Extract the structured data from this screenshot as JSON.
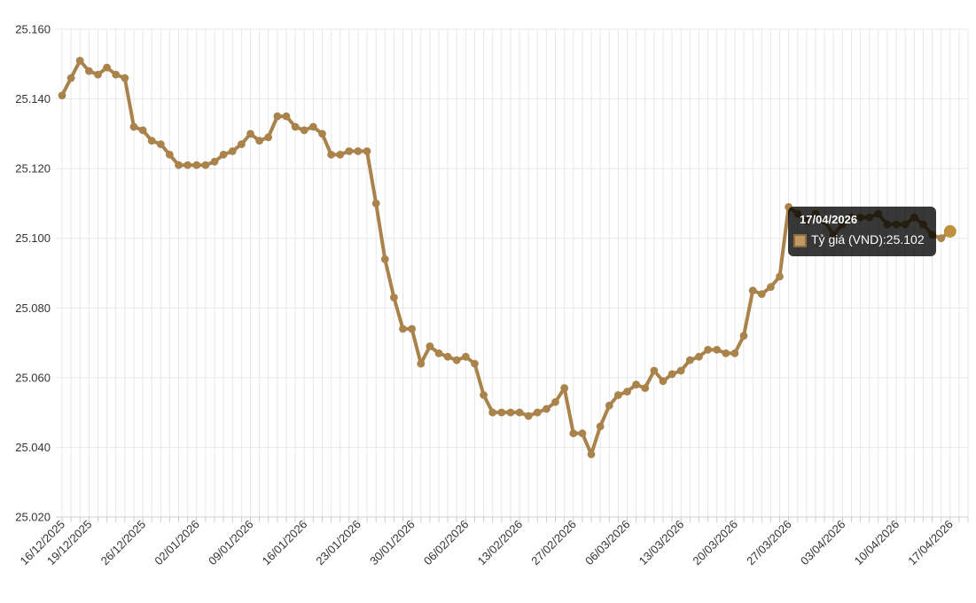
{
  "chart_data": {
    "type": "line",
    "title": "",
    "legend_position": "none",
    "grid": true,
    "series": [
      {
        "name": "Tỷ giá (VND)",
        "color": "#a9834b",
        "values": [
          25141,
          25146,
          25151,
          25148,
          25147,
          25149,
          25147,
          25146,
          25132,
          25131,
          25128,
          25127,
          25124,
          25121,
          25121,
          25121,
          25121,
          25122,
          25124,
          25125,
          25127,
          25130,
          25128,
          25129,
          25135,
          25135,
          25132,
          25131,
          25132,
          25130,
          25124,
          25124,
          25125,
          25125,
          25125,
          25110,
          25094,
          25083,
          25074,
          25074,
          25064,
          25069,
          25067,
          25066,
          25065,
          25066,
          25064,
          25055,
          25050,
          25050,
          25050,
          25050,
          25049,
          25050,
          25051,
          25053,
          25057,
          25044,
          25044,
          25038,
          25046,
          25052,
          25055,
          25056,
          25058,
          25057,
          25062,
          25059,
          25061,
          25062,
          25065,
          25066,
          25068,
          25068,
          25067,
          25067,
          25072,
          25085,
          25084,
          25086,
          25089,
          25109,
          25107,
          25105,
          25107,
          25105,
          25101,
          25104,
          25106,
          25106,
          25106,
          25107,
          25104,
          25104,
          25104,
          25106,
          25104,
          25101,
          25100,
          25102
        ]
      }
    ],
    "x_axis": {
      "tick_labels": [
        {
          "index": 0,
          "label": "16/12/2025"
        },
        {
          "index": 3,
          "label": "19/12/2025"
        },
        {
          "index": 9,
          "label": "26/12/2025"
        },
        {
          "index": 15,
          "label": "02/01/2026"
        },
        {
          "index": 21,
          "label": "09/01/2026"
        },
        {
          "index": 27,
          "label": "16/01/2026"
        },
        {
          "index": 33,
          "label": "23/01/2026"
        },
        {
          "index": 39,
          "label": "30/01/2026"
        },
        {
          "index": 45,
          "label": "06/02/2026"
        },
        {
          "index": 51,
          "label": "13/02/2026"
        },
        {
          "index": 57,
          "label": "27/02/2026"
        },
        {
          "index": 63,
          "label": "06/03/2026"
        },
        {
          "index": 69,
          "label": "13/03/2026"
        },
        {
          "index": 75,
          "label": "20/03/2026"
        },
        {
          "index": 81,
          "label": "27/03/2026"
        },
        {
          "index": 87,
          "label": "03/04/2026"
        },
        {
          "index": 93,
          "label": "10/04/2026"
        },
        {
          "index": 99,
          "label": "17/04/2026"
        }
      ]
    },
    "y_axis": {
      "min": 25020,
      "max": 25160,
      "tick_step": 20,
      "tick_values": [
        25160,
        25140,
        25120,
        25100,
        25080,
        25060,
        25040,
        25020
      ],
      "tick_labels": [
        "25.160",
        "25.140",
        "25.120",
        "25.100",
        "25.080",
        "25.060",
        "25.040",
        "25.020"
      ]
    },
    "tooltip": {
      "date": "17/04/2026",
      "series_label": "Tỷ giá (VND): ",
      "value": "25.102"
    }
  },
  "colors": {
    "line": "#a9834b",
    "marker": "#a9834b",
    "last_point": "#c0913c",
    "grid": "#e7e7e7",
    "axis_line": "#cccccc",
    "label_text": "#333333",
    "tooltip_text": "#ffffff",
    "swatch_fill": "#c09a62",
    "swatch_border": "#8a6d42"
  }
}
